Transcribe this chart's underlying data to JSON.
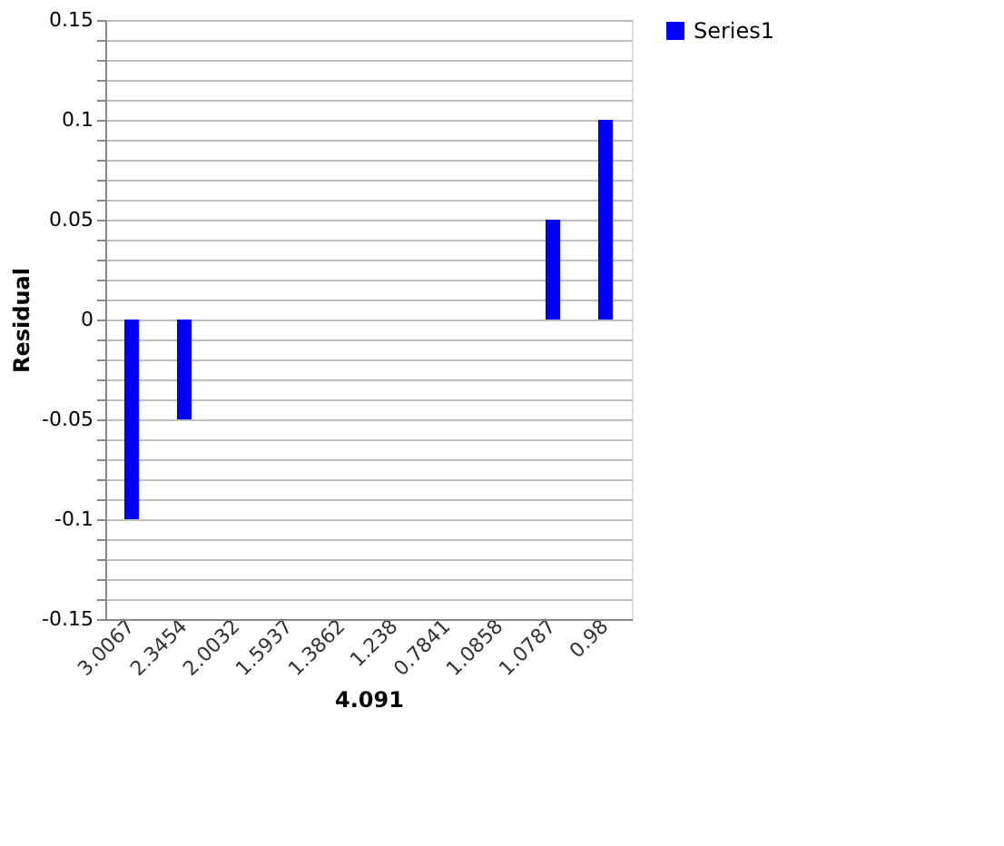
{
  "chart_data": {
    "type": "bar",
    "xlabel": "4.091",
    "ylabel": "Residual",
    "categories": [
      "3.0067",
      "2.3454",
      "2.0032",
      "1.5937",
      "1.3862",
      "1.238",
      "0.7841",
      "1.0858",
      "1.0787",
      "0.98"
    ],
    "series": [
      {
        "name": "Series1",
        "color": "#0000ff",
        "values": [
          -0.1,
          -0.05,
          0,
          0,
          0,
          0,
          0,
          0,
          0.05,
          0.1
        ]
      }
    ],
    "ylim": [
      -0.15,
      0.15
    ],
    "yticks": [
      -0.15,
      {
        "value": -0.14,
        "label": null
      },
      {
        "value": -0.13,
        "label": null
      },
      {
        "value": -0.12,
        "label": null
      },
      {
        "value": -0.11,
        "label": null
      },
      -0.1,
      {
        "value": -0.09,
        "label": null
      },
      {
        "value": -0.08,
        "label": null
      },
      {
        "value": -0.07,
        "label": null
      },
      {
        "value": -0.06,
        "label": null
      },
      -0.05,
      {
        "value": -0.04,
        "label": null
      },
      {
        "value": -0.03,
        "label": null
      },
      {
        "value": -0.02,
        "label": null
      },
      {
        "value": -0.01,
        "label": null
      },
      0,
      {
        "value": 0.01,
        "label": null
      },
      {
        "value": 0.02,
        "label": null
      },
      {
        "value": 0.03,
        "label": null
      },
      {
        "value": 0.04,
        "label": null
      },
      0.05,
      {
        "value": 0.06,
        "label": null
      },
      {
        "value": 0.07,
        "label": null
      },
      {
        "value": 0.08,
        "label": null
      },
      {
        "value": 0.09,
        "label": null
      },
      0.1,
      {
        "value": 0.11,
        "label": null
      },
      {
        "value": 0.12,
        "label": null
      },
      {
        "value": 0.13,
        "label": null
      },
      {
        "value": 0.14,
        "label": null
      },
      0.15
    ],
    "grid": "y",
    "legend": "right"
  }
}
